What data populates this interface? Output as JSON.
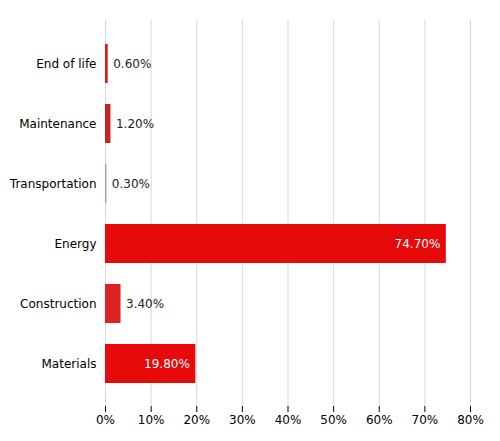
{
  "chart_data": {
    "type": "bar",
    "orientation": "horizontal",
    "categories": [
      "Materials",
      "Construction",
      "Energy",
      "Transportation",
      "Maintenance",
      "End of life"
    ],
    "values": [
      19.8,
      3.4,
      74.7,
      0.3,
      1.2,
      0.6
    ],
    "value_labels": [
      "19.80%",
      "3.40%",
      "74.70%",
      "0.30%",
      "1.20%",
      "0.60%"
    ],
    "data_labels": true,
    "colors": [
      "#e60a0a",
      "#dd2222",
      "#e60a0a",
      "#9999cc",
      "#cc2222",
      "#cc2222"
    ],
    "xlim": [
      0,
      80
    ],
    "xticks": [
      {
        "value": 0,
        "label": "0%"
      },
      {
        "value": 10,
        "label": "10%"
      },
      {
        "value": 20,
        "label": "20%"
      },
      {
        "value": 30,
        "label": "30%"
      },
      {
        "value": 40,
        "label": "40%"
      },
      {
        "value": 50,
        "label": "50%"
      },
      {
        "value": 60,
        "label": "60%"
      },
      {
        "value": 70,
        "label": "70%"
      },
      {
        "value": 80,
        "label": "80%"
      }
    ],
    "grid": true
  }
}
